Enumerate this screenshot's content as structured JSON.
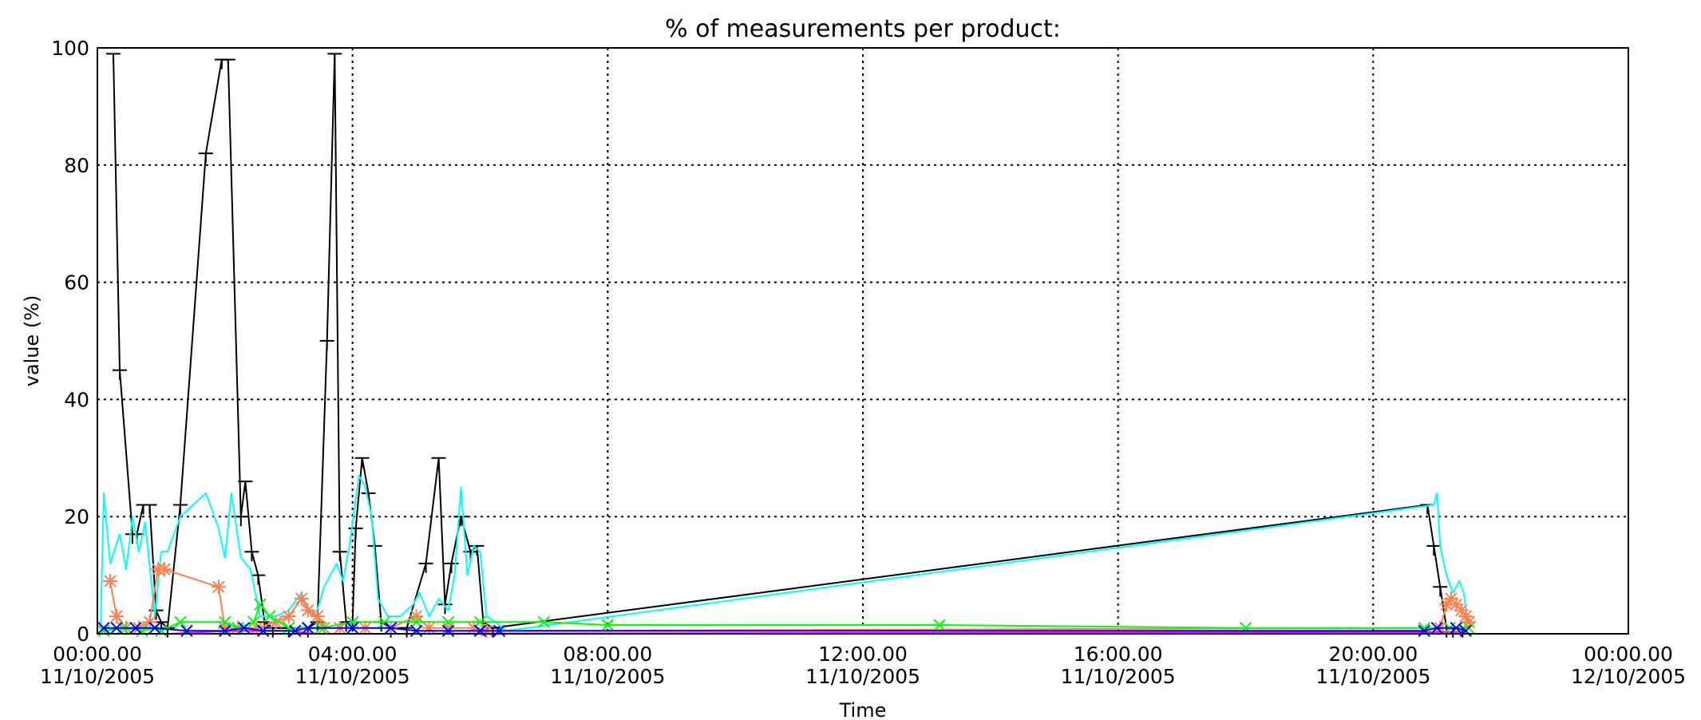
{
  "chart_data": {
    "type": "line",
    "title": "% of measurements per product:",
    "xlabel": "Time",
    "ylabel": "value (%)",
    "ylim": [
      0,
      100
    ],
    "xlim_hours": [
      0,
      24
    ],
    "yticks": [
      0,
      20,
      40,
      60,
      80,
      100
    ],
    "xticks": [
      {
        "hour": 0,
        "time": "00:00.00",
        "date": "11/10/2005"
      },
      {
        "hour": 4,
        "time": "04:00.00",
        "date": "11/10/2005"
      },
      {
        "hour": 8,
        "time": "08:00.00",
        "date": "11/10/2005"
      },
      {
        "hour": 12,
        "time": "12:00.00",
        "date": "11/10/2005"
      },
      {
        "hour": 16,
        "time": "16:00.00",
        "date": "11/10/2005"
      },
      {
        "hour": 20,
        "time": "20:00.00",
        "date": "11/10/2005"
      },
      {
        "hour": 24,
        "time": "00:00.00",
        "date": "12/10/2005"
      }
    ],
    "grid": true,
    "legend": "none",
    "series": [
      {
        "color": "#000000",
        "marker": "tee",
        "points": [
          [
            0.25,
            99
          ],
          [
            0.35,
            45
          ],
          [
            0.55,
            17
          ],
          [
            0.62,
            17
          ],
          [
            0.72,
            22
          ],
          [
            0.82,
            22
          ],
          [
            0.92,
            4
          ],
          [
            1.0,
            2
          ],
          [
            1.1,
            1
          ],
          [
            1.3,
            22
          ],
          [
            1.7,
            82
          ],
          [
            1.95,
            98
          ],
          [
            2.05,
            98
          ],
          [
            2.25,
            20
          ],
          [
            2.32,
            26
          ],
          [
            2.42,
            14
          ],
          [
            2.52,
            10
          ],
          [
            2.62,
            2
          ],
          [
            2.75,
            1
          ],
          [
            3.0,
            1
          ],
          [
            3.3,
            1
          ],
          [
            3.45,
            2
          ],
          [
            3.6,
            50
          ],
          [
            3.72,
            99
          ],
          [
            3.8,
            14
          ],
          [
            3.9,
            2
          ],
          [
            4.0,
            2
          ],
          [
            4.05,
            18
          ],
          [
            4.15,
            30
          ],
          [
            4.25,
            24
          ],
          [
            4.35,
            15
          ],
          [
            4.45,
            2
          ],
          [
            4.6,
            1
          ],
          [
            4.85,
            1
          ],
          [
            5.15,
            12
          ],
          [
            5.35,
            30
          ],
          [
            5.45,
            5
          ],
          [
            5.55,
            12
          ],
          [
            5.7,
            20
          ],
          [
            5.85,
            14
          ],
          [
            5.95,
            15
          ],
          [
            6.05,
            2
          ],
          [
            6.2,
            1
          ],
          [
            20.85,
            22
          ],
          [
            20.95,
            15
          ],
          [
            21.05,
            8
          ],
          [
            21.15,
            1
          ],
          [
            21.25,
            1
          ],
          [
            21.4,
            1
          ]
        ]
      },
      {
        "color": "#00ffff",
        "marker": "none",
        "points": [
          [
            0.05,
            1
          ],
          [
            0.1,
            24
          ],
          [
            0.2,
            12
          ],
          [
            0.35,
            17
          ],
          [
            0.45,
            11
          ],
          [
            0.55,
            20
          ],
          [
            0.65,
            14
          ],
          [
            0.75,
            19
          ],
          [
            0.9,
            3
          ],
          [
            1.0,
            14
          ],
          [
            1.1,
            14
          ],
          [
            1.3,
            20
          ],
          [
            1.7,
            24
          ],
          [
            1.9,
            18
          ],
          [
            2.0,
            13
          ],
          [
            2.1,
            24
          ],
          [
            2.25,
            13
          ],
          [
            2.4,
            11
          ],
          [
            2.55,
            3
          ],
          [
            2.8,
            3
          ],
          [
            3.0,
            4
          ],
          [
            3.2,
            7
          ],
          [
            3.35,
            3
          ],
          [
            3.45,
            4
          ],
          [
            3.55,
            8
          ],
          [
            3.75,
            12
          ],
          [
            3.85,
            9
          ],
          [
            3.95,
            15
          ],
          [
            4.1,
            27
          ],
          [
            4.2,
            25
          ],
          [
            4.3,
            20
          ],
          [
            4.4,
            6
          ],
          [
            4.55,
            3
          ],
          [
            4.75,
            3
          ],
          [
            4.95,
            5
          ],
          [
            5.05,
            7
          ],
          [
            5.2,
            3
          ],
          [
            5.35,
            6
          ],
          [
            5.5,
            4
          ],
          [
            5.6,
            10
          ],
          [
            5.7,
            25
          ],
          [
            5.8,
            10
          ],
          [
            5.9,
            15
          ],
          [
            6.0,
            14
          ],
          [
            6.1,
            3
          ],
          [
            6.25,
            2
          ],
          [
            6.4,
            0.5
          ],
          [
            20.95,
            22
          ],
          [
            21.0,
            24
          ],
          [
            21.05,
            15
          ],
          [
            21.15,
            10
          ],
          [
            21.25,
            7
          ],
          [
            21.35,
            9
          ],
          [
            21.42,
            7
          ],
          [
            21.48,
            2
          ]
        ]
      },
      {
        "color": "#ff7f50",
        "marker": "asterisk",
        "points": [
          [
            0.2,
            9
          ],
          [
            0.3,
            3
          ],
          [
            0.45,
            1
          ],
          [
            0.65,
            1
          ],
          [
            0.82,
            2
          ],
          [
            0.95,
            11
          ],
          [
            1.05,
            11
          ],
          [
            1.9,
            8
          ],
          [
            2.0,
            1
          ],
          [
            2.2,
            1
          ],
          [
            2.5,
            1
          ],
          [
            2.8,
            2
          ],
          [
            3.0,
            3
          ],
          [
            3.2,
            6
          ],
          [
            3.3,
            4
          ],
          [
            3.45,
            3
          ],
          [
            3.55,
            1
          ],
          [
            3.8,
            1
          ],
          [
            4.2,
            1
          ],
          [
            4.6,
            1
          ],
          [
            5.0,
            3
          ],
          [
            5.2,
            1
          ],
          [
            5.5,
            1
          ],
          [
            5.9,
            1
          ],
          [
            6.1,
            0.5
          ],
          [
            21.05,
            1
          ],
          [
            21.15,
            5
          ],
          [
            21.22,
            6
          ],
          [
            21.3,
            5
          ],
          [
            21.38,
            4
          ],
          [
            21.45,
            3
          ],
          [
            21.5,
            2
          ]
        ]
      },
      {
        "color": "#00ff00",
        "marker": "x",
        "points": [
          [
            0.1,
            0.5
          ],
          [
            0.4,
            1
          ],
          [
            0.7,
            0.5
          ],
          [
            0.9,
            1
          ],
          [
            1.0,
            0.5
          ],
          [
            1.3,
            2
          ],
          [
            2.0,
            2
          ],
          [
            2.2,
            1
          ],
          [
            2.45,
            2
          ],
          [
            2.55,
            5
          ],
          [
            2.7,
            3
          ],
          [
            3.0,
            1
          ],
          [
            3.3,
            1
          ],
          [
            3.5,
            1
          ],
          [
            4.0,
            2
          ],
          [
            4.5,
            2
          ],
          [
            5.0,
            2
          ],
          [
            5.5,
            2
          ],
          [
            6.0,
            2
          ],
          [
            7.0,
            2
          ],
          [
            8.0,
            1.5
          ],
          [
            13.2,
            1.5
          ],
          [
            18.0,
            1
          ],
          [
            20.8,
            1
          ],
          [
            21.2,
            1
          ],
          [
            21.5,
            1
          ]
        ]
      },
      {
        "color": "#ff00ff",
        "marker": "none",
        "points": [
          [
            1.15,
            0
          ],
          [
            2.1,
            0.5
          ],
          [
            3.0,
            0.5
          ],
          [
            3.4,
            0
          ],
          [
            21.1,
            0.3
          ],
          [
            21.4,
            0.3
          ]
        ]
      },
      {
        "color": "#0000ff",
        "marker": "x",
        "points": [
          [
            0.1,
            1
          ],
          [
            0.3,
            1
          ],
          [
            0.6,
            1
          ],
          [
            0.9,
            1
          ],
          [
            1.4,
            0.5
          ],
          [
            2.0,
            0.5
          ],
          [
            2.3,
            1
          ],
          [
            2.6,
            0.5
          ],
          [
            3.1,
            0.5
          ],
          [
            3.3,
            1
          ],
          [
            4.0,
            1
          ],
          [
            4.6,
            1
          ],
          [
            5.0,
            0.5
          ],
          [
            5.5,
            0.5
          ],
          [
            6.0,
            0.5
          ],
          [
            6.3,
            0.5
          ],
          [
            20.8,
            0.5
          ],
          [
            21.0,
            1
          ],
          [
            21.3,
            1
          ],
          [
            21.45,
            0.5
          ]
        ]
      },
      {
        "color": "#ff0000",
        "marker": "none",
        "points": [
          [
            0.0,
            0
          ],
          [
            24.0,
            0
          ]
        ]
      }
    ]
  }
}
